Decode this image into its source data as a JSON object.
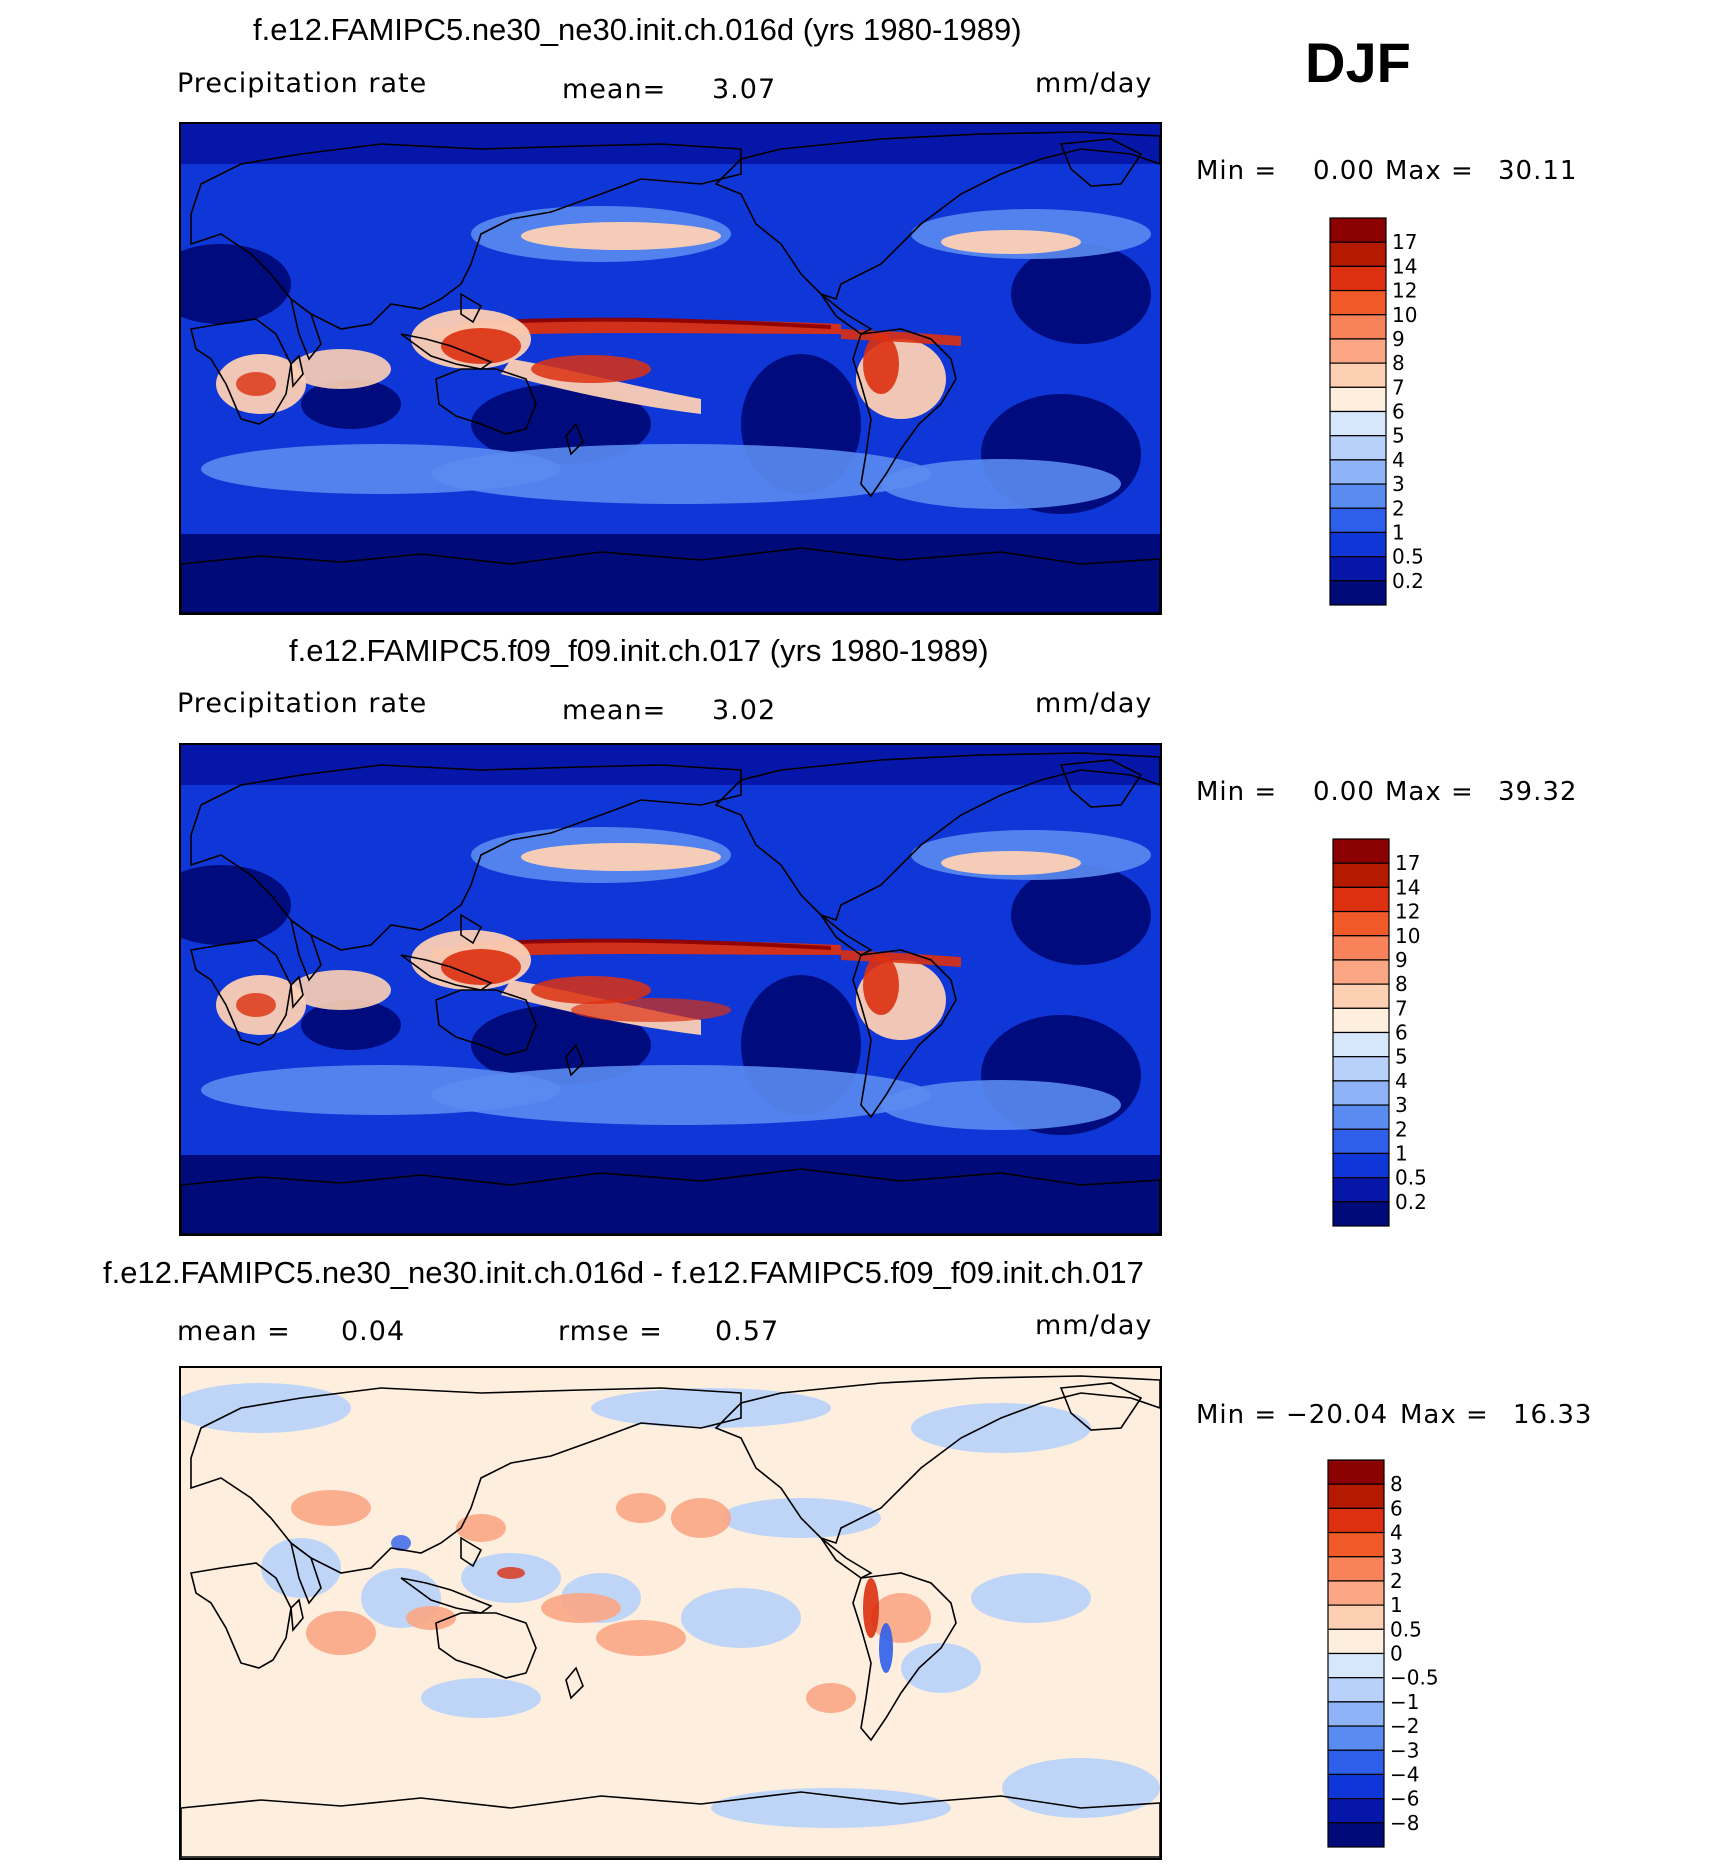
{
  "season": "DJF",
  "panels": [
    {
      "title": "f.e12.FAMIPC5.ne30_ne30.init.ch.016d (yrs 1980-1989)",
      "variable_label": "Precipitation rate",
      "mean_label": "mean=",
      "mean_value": "3.07",
      "units": "mm/day",
      "min_label": "Min =",
      "min_value": "0.00",
      "max_label": "Max =",
      "max_value": "30.11",
      "colorbar_levels": [
        "17",
        "14",
        "12",
        "10",
        "9",
        "8",
        "7",
        "6",
        "5",
        "4",
        "3",
        "2",
        "1",
        "0.5",
        "0.2"
      ],
      "colorbar_colors": [
        "#8b0000",
        "#b31a00",
        "#dc3010",
        "#f05a28",
        "#f8825a",
        "#fba684",
        "#fdd0b4",
        "#fdeede",
        "#d6e6fb",
        "#b8d1fb",
        "#8fb3f7",
        "#5a8bf0",
        "#2e5fea",
        "#0f36d6",
        "#0616a8",
        "#000a78"
      ],
      "map_palette": {
        "ocean_low": "#000a78",
        "dry": "#0f36d6",
        "mid": "#5a8bf0",
        "wet_low": "#fdd0b4",
        "wet_high": "#dc3010",
        "peak": "#8b0000"
      }
    },
    {
      "title": "f.e12.FAMIPC5.f09_f09.init.ch.017 (yrs 1980-1989)",
      "variable_label": "Precipitation rate",
      "mean_label": "mean=",
      "mean_value": "3.02",
      "units": "mm/day",
      "min_label": "Min =",
      "min_value": "0.00",
      "max_label": "Max =",
      "max_value": "39.32",
      "colorbar_levels": [
        "17",
        "14",
        "12",
        "10",
        "9",
        "8",
        "7",
        "6",
        "5",
        "4",
        "3",
        "2",
        "1",
        "0.5",
        "0.2"
      ],
      "colorbar_colors": [
        "#8b0000",
        "#b31a00",
        "#dc3010",
        "#f05a28",
        "#f8825a",
        "#fba684",
        "#fdd0b4",
        "#fdeede",
        "#d6e6fb",
        "#b8d1fb",
        "#8fb3f7",
        "#5a8bf0",
        "#2e5fea",
        "#0f36d6",
        "#0616a8",
        "#000a78"
      ],
      "map_palette": {
        "ocean_low": "#000a78",
        "dry": "#0f36d6",
        "mid": "#5a8bf0",
        "wet_low": "#fdd0b4",
        "wet_high": "#dc3010",
        "peak": "#8b0000"
      }
    },
    {
      "title": "f.e12.FAMIPC5.ne30_ne30.init.ch.016d - f.e12.FAMIPC5.f09_f09.init.ch.017",
      "mean_label": "mean =",
      "mean_value": "0.04",
      "rmse_label": "rmse =",
      "rmse_value": "0.57",
      "units": "mm/day",
      "min_label": "Min =",
      "min_value": "−20.04",
      "max_label": "Max =",
      "max_value": "16.33",
      "colorbar_levels": [
        "8",
        "6",
        "4",
        "3",
        "2",
        "1",
        "0.5",
        "0",
        "−0.5",
        "−1",
        "−2",
        "−3",
        "−4",
        "−6",
        "−8"
      ],
      "colorbar_colors": [
        "#8b0000",
        "#b31a00",
        "#dc3010",
        "#f05a28",
        "#f8825a",
        "#fba684",
        "#fdd0b4",
        "#fdeede",
        "#d6e6fb",
        "#b8d1fb",
        "#8fb3f7",
        "#5a8bf0",
        "#2e5fea",
        "#0f36d6",
        "#0616a8",
        "#000a78"
      ],
      "map_palette": {
        "base": "#fdeede",
        "neg": "#b8d1fb",
        "pos": "#fba684",
        "neg_strong": "#2e5fea",
        "pos_strong": "#dc3010"
      }
    }
  ],
  "chart_data": {
    "type": "heatmap",
    "description_fields": {
      "season": "DJF",
      "units": "mm/day"
    },
    "panels": [
      {
        "name": "f.e12.FAMIPC5.ne30_ne30.init.ch.016d (yrs 1980-1989)",
        "mean": 3.07,
        "min": 0.0,
        "max": 30.11,
        "levels": [
          0.2,
          0.5,
          1,
          2,
          3,
          4,
          5,
          6,
          7,
          8,
          9,
          10,
          12,
          14,
          17
        ]
      },
      {
        "name": "f.e12.FAMIPC5.f09_f09.init.ch.017 (yrs 1980-1989)",
        "mean": 3.02,
        "min": 0.0,
        "max": 39.32,
        "levels": [
          0.2,
          0.5,
          1,
          2,
          3,
          4,
          5,
          6,
          7,
          8,
          9,
          10,
          12,
          14,
          17
        ]
      },
      {
        "name": "f.e12.FAMIPC5.ne30_ne30.init.ch.016d - f.e12.FAMIPC5.f09_f09.init.ch.017",
        "mean": 0.04,
        "rmse": 0.57,
        "min": -20.04,
        "max": 16.33,
        "levels": [
          -8,
          -6,
          -4,
          -3,
          -2,
          -1,
          -0.5,
          0,
          0.5,
          1,
          2,
          3,
          4,
          6,
          8
        ]
      }
    ]
  }
}
